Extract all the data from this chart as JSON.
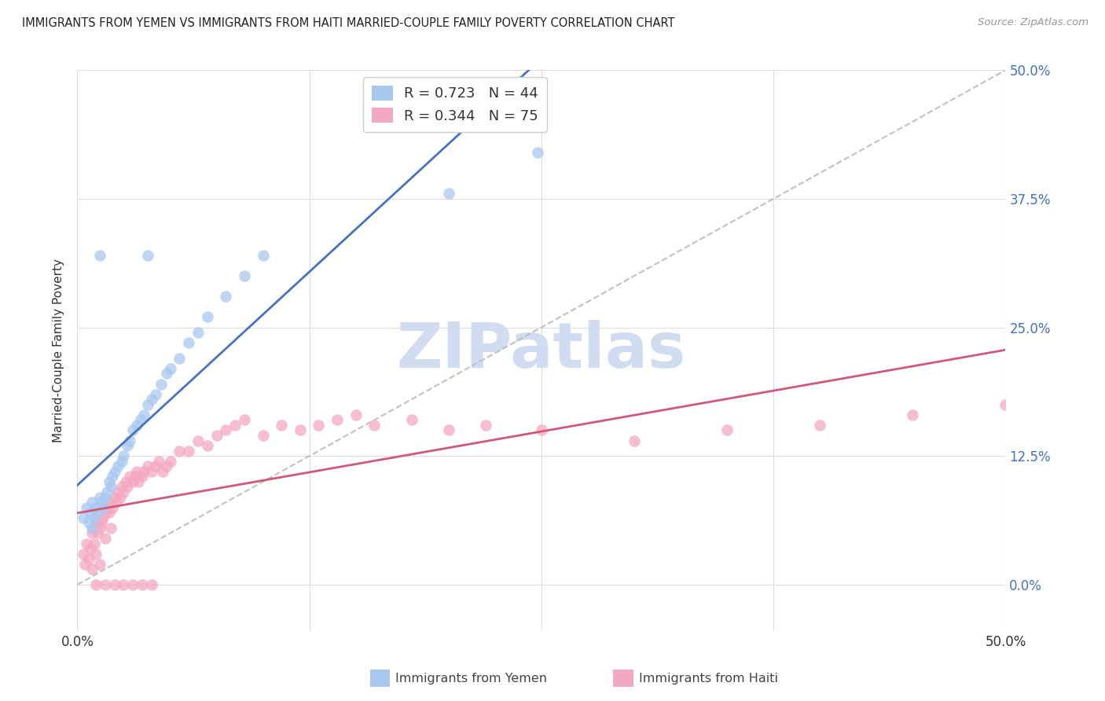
{
  "title": "IMMIGRANTS FROM YEMEN VS IMMIGRANTS FROM HAITI MARRIED-COUPLE FAMILY POVERTY CORRELATION CHART",
  "source": "Source: ZipAtlas.com",
  "ylabel": "Married-Couple Family Poverty",
  "legend_label1": "Immigrants from Yemen",
  "legend_label2": "Immigrants from Haiti",
  "R1": 0.723,
  "N1": 44,
  "R2": 0.344,
  "N2": 75,
  "color1": "#A8C8F0",
  "color2": "#F4A8C0",
  "line_color1": "#4472C4",
  "line_color2": "#D05878",
  "watermark": "ZIPatlas",
  "watermark_color": "#D0DCF0",
  "background_color": "#FFFFFF",
  "grid_color": "#DDDDDD",
  "title_color": "#222222",
  "axis_tick_color": "#4472C4",
  "xlim": [
    0.0,
    0.5
  ],
  "ylim": [
    0.0,
    0.5
  ],
  "xticks": [
    0.0,
    0.125,
    0.25,
    0.375,
    0.5
  ],
  "yticks": [
    0.0,
    0.125,
    0.25,
    0.375,
    0.5
  ],
  "yemen_x": [
    0.003,
    0.005,
    0.006,
    0.007,
    0.008,
    0.008,
    0.009,
    0.01,
    0.011,
    0.012,
    0.013,
    0.014,
    0.015,
    0.016,
    0.017,
    0.018,
    0.019,
    0.02,
    0.022,
    0.024,
    0.025,
    0.027,
    0.028,
    0.03,
    0.032,
    0.034,
    0.036,
    0.038,
    0.04,
    0.042,
    0.045,
    0.048,
    0.05,
    0.055,
    0.06,
    0.065,
    0.07,
    0.08,
    0.09,
    0.1,
    0.038,
    0.012,
    0.2,
    0.248
  ],
  "yemen_y": [
    0.065,
    0.075,
    0.06,
    0.07,
    0.055,
    0.08,
    0.065,
    0.075,
    0.07,
    0.085,
    0.08,
    0.075,
    0.085,
    0.09,
    0.1,
    0.095,
    0.105,
    0.11,
    0.115,
    0.12,
    0.125,
    0.135,
    0.14,
    0.15,
    0.155,
    0.16,
    0.165,
    0.175,
    0.18,
    0.185,
    0.195,
    0.205,
    0.21,
    0.22,
    0.235,
    0.245,
    0.26,
    0.28,
    0.3,
    0.32,
    0.32,
    0.32,
    0.38,
    0.42
  ],
  "haiti_x": [
    0.003,
    0.004,
    0.005,
    0.006,
    0.007,
    0.008,
    0.008,
    0.009,
    0.01,
    0.01,
    0.011,
    0.012,
    0.012,
    0.013,
    0.014,
    0.015,
    0.015,
    0.016,
    0.017,
    0.018,
    0.018,
    0.019,
    0.02,
    0.021,
    0.022,
    0.023,
    0.024,
    0.025,
    0.026,
    0.027,
    0.028,
    0.03,
    0.031,
    0.032,
    0.033,
    0.035,
    0.036,
    0.038,
    0.04,
    0.042,
    0.044,
    0.046,
    0.048,
    0.05,
    0.055,
    0.06,
    0.065,
    0.07,
    0.075,
    0.08,
    0.085,
    0.09,
    0.1,
    0.11,
    0.12,
    0.13,
    0.14,
    0.15,
    0.16,
    0.18,
    0.2,
    0.22,
    0.25,
    0.3,
    0.35,
    0.4,
    0.45,
    0.5,
    0.01,
    0.015,
    0.02,
    0.025,
    0.03,
    0.035,
    0.04
  ],
  "haiti_y": [
    0.03,
    0.02,
    0.04,
    0.025,
    0.035,
    0.05,
    0.015,
    0.04,
    0.06,
    0.03,
    0.05,
    0.055,
    0.02,
    0.06,
    0.065,
    0.07,
    0.045,
    0.075,
    0.07,
    0.08,
    0.055,
    0.075,
    0.085,
    0.08,
    0.09,
    0.085,
    0.095,
    0.09,
    0.1,
    0.095,
    0.105,
    0.1,
    0.105,
    0.11,
    0.1,
    0.105,
    0.11,
    0.115,
    0.11,
    0.115,
    0.12,
    0.11,
    0.115,
    0.12,
    0.13,
    0.13,
    0.14,
    0.135,
    0.145,
    0.15,
    0.155,
    0.16,
    0.145,
    0.155,
    0.15,
    0.155,
    0.16,
    0.165,
    0.155,
    0.16,
    0.15,
    0.155,
    0.15,
    0.14,
    0.15,
    0.155,
    0.165,
    0.175,
    0.0,
    0.0,
    0.0,
    0.0,
    0.0,
    0.0,
    0.0
  ]
}
